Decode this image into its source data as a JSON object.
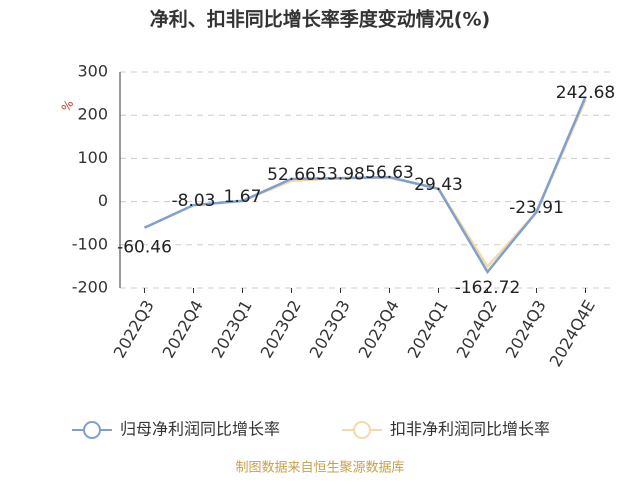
{
  "chart_data": {
    "type": "line",
    "title": "净利、扣非同比增长率季度变动情况(%)",
    "y_unit": "%",
    "categories": [
      "2022Q3",
      "2022Q4",
      "2023Q1",
      "2023Q2",
      "2023Q3",
      "2023Q4",
      "2024Q1",
      "2024Q2",
      "2024Q3",
      "2024Q4E"
    ],
    "series": [
      {
        "name": "归母净利润同比增长率",
        "color": "#7f9fcf",
        "values": [
          -60.46,
          -8.03,
          1.67,
          52.66,
          53.98,
          56.63,
          29.43,
          -162.72,
          -23.91,
          242.68
        ]
      },
      {
        "name": "扣非净利润同比增长率",
        "color": "#f5d9a6",
        "values": [
          null,
          null,
          2,
          48,
          55,
          55,
          30,
          -150,
          -25,
          235
        ]
      }
    ],
    "ylim": [
      -200,
      300
    ],
    "yticks": [
      -200,
      -100,
      0,
      100,
      200,
      300
    ],
    "grid": true,
    "source": "制图数据来自恒生聚源数据库"
  }
}
